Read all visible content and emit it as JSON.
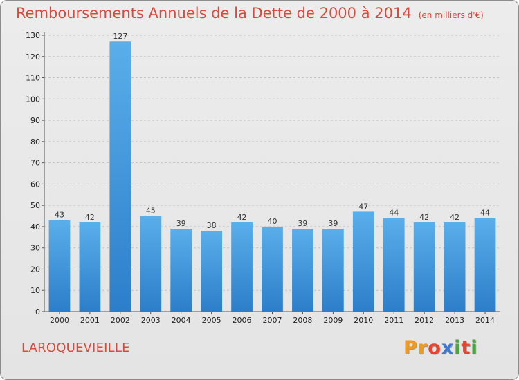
{
  "header": {
    "title": "Remboursements Annuels de la Dette de 2000 à 2014",
    "subtitle": "(en milliers d'€)"
  },
  "footer": {
    "commune": "LAROQUEVIEILLE",
    "logo": [
      "P",
      "r",
      "o",
      "x",
      "i",
      "t",
      "i"
    ]
  },
  "colors": {
    "title": "#d94a3d",
    "bar_top": "#5aaeea",
    "bar_bottom": "#2c7ec9",
    "logo": [
      "#f39a1e",
      "#f39a1e",
      "#e8432f",
      "#3a7ad1",
      "#4aa63c",
      "#e8432f",
      "#4aa63c"
    ]
  },
  "chart_data": {
    "type": "bar",
    "categories": [
      "2000",
      "2001",
      "2002",
      "2003",
      "2004",
      "2005",
      "2006",
      "2007",
      "2008",
      "2009",
      "2010",
      "2011",
      "2012",
      "2013",
      "2014"
    ],
    "values": [
      43,
      42,
      127,
      45,
      39,
      38,
      42,
      40,
      39,
      39,
      47,
      44,
      42,
      42,
      44
    ],
    "ylim": [
      0,
      130
    ],
    "yticks": [
      0,
      10,
      20,
      30,
      40,
      50,
      60,
      70,
      80,
      90,
      100,
      110,
      120,
      130
    ],
    "grid": "horizontal dashed",
    "data_labels": true,
    "legend": "none"
  }
}
